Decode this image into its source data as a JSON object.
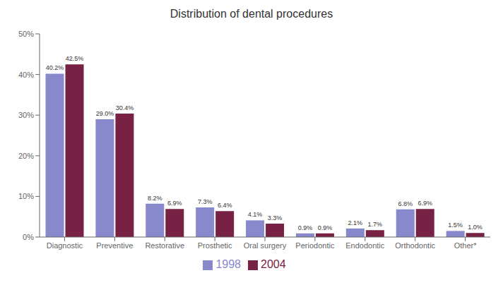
{
  "chart_data": {
    "type": "bar",
    "title": "Distribution of dental procedures",
    "categories": [
      "Diagnostic",
      "Preventive",
      "Restorative",
      "Prosthetic",
      "Oral surgery",
      "Periodontic",
      "Endodontic",
      "Orthodontic",
      "Other*"
    ],
    "series": [
      {
        "name": "1998",
        "color": "#8888cc",
        "values": [
          40.2,
          29.0,
          8.2,
          7.3,
          4.1,
          0.9,
          2.1,
          6.8,
          1.5
        ],
        "value_labels": [
          "40.2%",
          "29.0%",
          "8.2%",
          "7.3%",
          "4.1%",
          "0.9%",
          "2.1%",
          "6.8%",
          "1.5%"
        ]
      },
      {
        "name": "2004",
        "color": "#772244",
        "values": [
          42.5,
          30.4,
          6.9,
          6.4,
          3.3,
          0.9,
          1.7,
          6.9,
          1.0
        ],
        "value_labels": [
          "42.5%",
          "30.4%",
          "6.9%",
          "6.4%",
          "3.3%",
          "0.9%",
          "1.7%",
          "6.9%",
          "1.0%"
        ]
      }
    ],
    "ylim": [
      0,
      50
    ],
    "yticks": [
      {
        "value": 0,
        "label": "0%"
      },
      {
        "value": 10,
        "label": "10%"
      },
      {
        "value": 20,
        "label": "20%"
      },
      {
        "value": 30,
        "label": "30%"
      },
      {
        "value": 40,
        "label": "40%"
      },
      {
        "value": 50,
        "label": "50%"
      }
    ],
    "grid": false,
    "legend": "bottom",
    "data_labels": true
  }
}
